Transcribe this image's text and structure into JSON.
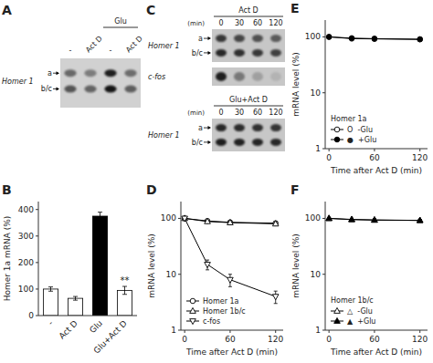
{
  "chart_data": [
    {
      "type": "gel",
      "title": "A",
      "categories": [
        "-",
        "Act D",
        "-",
        "Act D"
      ],
      "series": [
        {
          "name": "a",
          "values": [
            0.5,
            0.4,
            0.85,
            0.48
          ]
        },
        {
          "name": "b/c",
          "values": [
            0.6,
            0.52,
            0.9,
            0.55
          ]
        }
      ],
      "annotations": [
        "Homer 1",
        "Glu"
      ]
    },
    {
      "type": "bar",
      "title": "B",
      "categories": [
        "-",
        "Act D",
        "Glu",
        "Glu+Act D"
      ],
      "values": [
        100,
        65,
        375,
        95
      ],
      "errors": [
        8,
        7,
        15,
        15
      ],
      "colors": [
        "white",
        "white",
        "black",
        "white"
      ],
      "ylabel": "Homer 1a mRNA (%)",
      "ylim": [
        0,
        430
      ],
      "yticks": [
        0,
        100,
        200,
        300,
        400
      ],
      "annotations": [
        {
          "text": "**",
          "x": "Glu+Act D"
        }
      ]
    },
    {
      "type": "gel",
      "title": "C",
      "subtitle": "Act D",
      "categories": [
        "0",
        "30",
        "60",
        "120"
      ],
      "xlabel": "(min)",
      "series": [
        {
          "name": "a",
          "values": [
            0.72,
            0.65,
            0.6,
            0.55
          ]
        },
        {
          "name": "b/c",
          "values": [
            0.8,
            0.76,
            0.72,
            0.68
          ]
        },
        {
          "name": "c-fos",
          "values": [
            0.85,
            0.4,
            0.2,
            0.1
          ]
        }
      ],
      "annotations": [
        "Homer 1"
      ]
    },
    {
      "type": "gel",
      "subtitle": "Glu+Act D",
      "categories": [
        "0",
        "30",
        "60",
        "120"
      ],
      "xlabel": "(min)",
      "series": [
        {
          "name": "a",
          "values": [
            0.8,
            0.78,
            0.76,
            0.74
          ]
        },
        {
          "name": "b/c",
          "values": [
            0.85,
            0.83,
            0.82,
            0.8
          ]
        }
      ],
      "annotations": [
        "Homer 1"
      ]
    },
    {
      "type": "line",
      "title": "D",
      "x": [
        0,
        30,
        60,
        120
      ],
      "series": [
        {
          "name": "Homer 1a",
          "color": "black",
          "marker": "circle-open",
          "values": [
            100,
            90,
            85,
            82
          ],
          "errors": [
            3,
            4,
            4,
            5
          ]
        },
        {
          "name": "Homer 1b/c",
          "color": "black",
          "marker": "triangle-up-open",
          "values": [
            100,
            88,
            84,
            80
          ],
          "errors": [
            3,
            4,
            4,
            5
          ]
        },
        {
          "name": "c-fos",
          "color": "black",
          "marker": "triangle-down-open",
          "values": [
            100,
            15,
            8,
            4
          ],
          "errors": [
            5,
            3,
            2,
            1
          ]
        }
      ],
      "log": "y",
      "xlim": [
        -5,
        130
      ],
      "xticks": [
        0,
        60,
        120
      ],
      "ylim": [
        1,
        200
      ],
      "yticks": [
        1,
        10,
        100
      ],
      "xlabel": "Time after Act D (min)",
      "ylabel": "mRNA level (%)",
      "legend": "lower left"
    },
    {
      "type": "line",
      "title": "E",
      "x": [
        0,
        30,
        60,
        120
      ],
      "series": [
        {
          "name": "O  -Glu",
          "color": "black",
          "marker": "circle-open",
          "values": [
            100,
            93,
            92,
            90
          ],
          "errors": [
            3,
            4,
            4,
            5
          ]
        },
        {
          "name": "●  +Glu",
          "color": "black",
          "marker": "circle-filled",
          "values": [
            100,
            95,
            93,
            91
          ],
          "errors": [
            3,
            4,
            4,
            5
          ]
        }
      ],
      "log": "y",
      "xlim": [
        -5,
        130
      ],
      "xticks": [
        0,
        60,
        120
      ],
      "ylim": [
        1,
        200
      ],
      "yticks": [
        1,
        10,
        100
      ],
      "xlabel": "Time after Act D (min)",
      "ylabel": "mRNA level (%)",
      "legend": "lower left",
      "annotations": [
        "Homer 1a"
      ]
    },
    {
      "type": "line",
      "title": "F",
      "x": [
        0,
        30,
        60,
        120
      ],
      "series": [
        {
          "name": "△  -Glu",
          "color": "black",
          "marker": "triangle-up-open",
          "values": [
            100,
            95,
            93,
            92
          ],
          "errors": [
            3,
            4,
            4,
            4
          ]
        },
        {
          "name": "▲  +Glu",
          "color": "black",
          "marker": "triangle-up-filled",
          "values": [
            100,
            96,
            94,
            92
          ],
          "errors": [
            3,
            4,
            4,
            4
          ]
        }
      ],
      "log": "y",
      "xlim": [
        -5,
        130
      ],
      "xticks": [
        0,
        60,
        120
      ],
      "ylim": [
        1,
        200
      ],
      "yticks": [
        1,
        10,
        100
      ],
      "xlabel": "Time after Act D (min)",
      "ylabel": "mRNA level (%)",
      "legend": "lower left",
      "annotations": [
        "Homer 1b/c"
      ]
    }
  ]
}
